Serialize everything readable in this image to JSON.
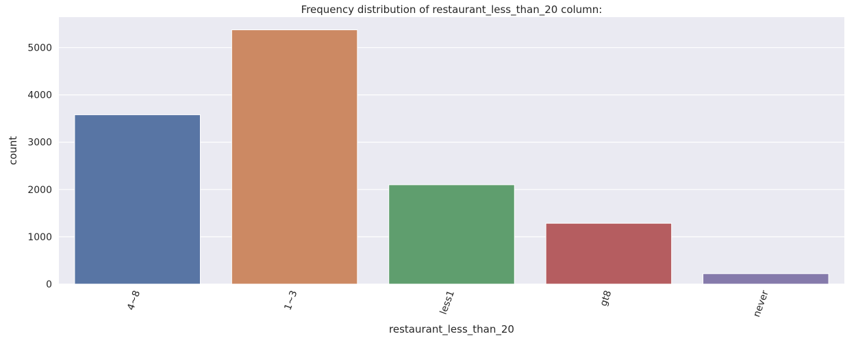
{
  "chart_data": {
    "type": "bar",
    "title": "Frequency distribution of restaurant_less_than_20 column:",
    "xlabel": "restaurant_less_than_20",
    "ylabel": "count",
    "categories": [
      "4~8",
      "1~3",
      "less1",
      "gt8",
      "never"
    ],
    "values": [
      3580,
      5376,
      2100,
      1285,
      220
    ],
    "colors": [
      "#5875a4",
      "#cc8963",
      "#5f9e6e",
      "#b55d60",
      "#857aab"
    ],
    "ylim": [
      0,
      5645
    ],
    "yticks": [
      0,
      1000,
      2000,
      3000,
      4000,
      5000
    ],
    "grid": true,
    "background": "#eaeaf2",
    "x_tick_rotation": -70
  }
}
